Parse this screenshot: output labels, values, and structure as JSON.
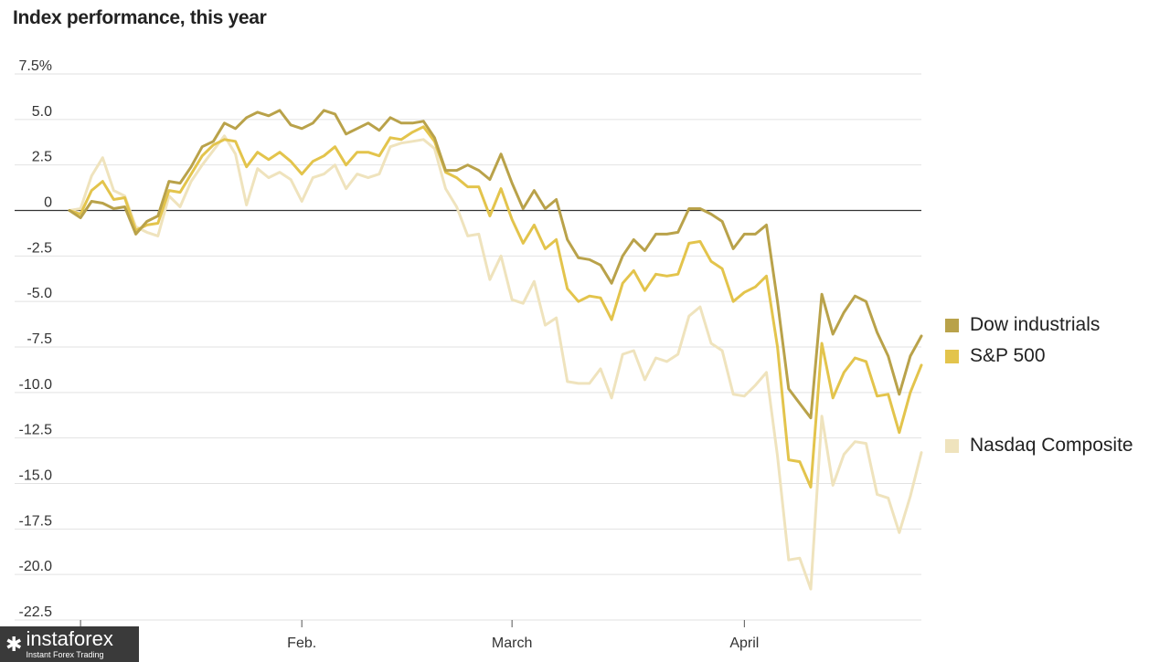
{
  "title": "Index performance, this year",
  "chart_data": {
    "type": "line",
    "title": "Index performance, this year",
    "xlabel": "",
    "ylabel": "",
    "ylim": [
      -22.5,
      7.5
    ],
    "y_ticks": [
      "7.5%",
      "5.0",
      "2.5",
      "0",
      "-2.5",
      "-5.0",
      "-7.5",
      "-10.0",
      "-12.5",
      "-15.0",
      "-17.5",
      "-20.0",
      "-22.5"
    ],
    "y_tick_values": [
      7.5,
      5,
      2.5,
      0,
      -2.5,
      -5,
      -7.5,
      -10,
      -12.5,
      -15,
      -17.5,
      -20,
      -22.5
    ],
    "x_ticks": [
      "",
      "Feb.",
      "March",
      "April"
    ],
    "x_tick_index": [
      1,
      21,
      40,
      61
    ],
    "grid": true,
    "legend_position": "right",
    "series": [
      {
        "name": "Dow industrials",
        "color": "#b9a24a",
        "values": [
          0,
          -0.4,
          0.5,
          0.4,
          0.1,
          0.2,
          -1.3,
          -0.6,
          -0.3,
          1.6,
          1.5,
          2.4,
          3.5,
          3.8,
          4.8,
          4.5,
          5.1,
          5.4,
          5.2,
          5.5,
          4.7,
          4.5,
          4.8,
          5.5,
          5.3,
          4.2,
          4.5,
          4.8,
          4.4,
          5.1,
          4.8,
          4.8,
          4.9,
          4.0,
          2.2,
          2.2,
          2.5,
          2.2,
          1.7,
          3.1,
          1.5,
          0.1,
          1.1,
          0.1,
          0.6,
          -1.6,
          -2.6,
          -2.7,
          -3.0,
          -4.0,
          -2.5,
          -1.6,
          -2.2,
          -1.3,
          -1.3,
          -1.2,
          0.1,
          0.1,
          -0.2,
          -0.6,
          -2.1,
          -1.3,
          -1.3,
          -0.8,
          -5.0,
          -9.8,
          -10.6,
          -11.4,
          -4.6,
          -6.8,
          -5.6,
          -4.7,
          -5.0,
          -6.7,
          -8.0,
          -10.1,
          -8.0,
          -6.9
        ]
      },
      {
        "name": "S&P 500",
        "color": "#e3c44c",
        "values": [
          0,
          -0.2,
          1.1,
          1.6,
          0.6,
          0.7,
          -1.1,
          -0.8,
          -0.7,
          1.1,
          1.0,
          2.0,
          3.0,
          3.6,
          3.9,
          3.8,
          2.4,
          3.2,
          2.8,
          3.2,
          2.7,
          2.0,
          2.7,
          3.0,
          3.5,
          2.5,
          3.2,
          3.2,
          3.0,
          4.0,
          3.9,
          4.3,
          4.6,
          3.8,
          2.1,
          1.8,
          1.3,
          1.3,
          -0.3,
          1.2,
          -0.5,
          -1.8,
          -0.8,
          -2.1,
          -1.6,
          -4.3,
          -5.0,
          -4.7,
          -4.8,
          -6.0,
          -4.0,
          -3.3,
          -4.4,
          -3.5,
          -3.6,
          -3.5,
          -1.8,
          -1.7,
          -2.8,
          -3.2,
          -5.0,
          -4.5,
          -4.2,
          -3.6,
          -7.5,
          -13.7,
          -13.8,
          -15.2,
          -7.3,
          -10.3,
          -8.9,
          -8.1,
          -8.3,
          -10.2,
          -10.1,
          -12.2,
          -10.0,
          -8.5
        ]
      },
      {
        "name": "Nasdaq Composite",
        "color": "#efe3bd",
        "values": [
          0,
          0.1,
          1.9,
          2.9,
          1.1,
          0.8,
          -0.9,
          -1.2,
          -1.4,
          0.8,
          0.2,
          1.6,
          2.5,
          3.3,
          4.1,
          3.1,
          0.3,
          2.3,
          1.8,
          2.1,
          1.7,
          0.5,
          1.8,
          2.0,
          2.5,
          1.2,
          2.0,
          1.8,
          2.0,
          3.5,
          3.7,
          3.8,
          3.9,
          3.4,
          1.2,
          0.2,
          -1.4,
          -1.3,
          -3.8,
          -2.5,
          -4.9,
          -5.1,
          -3.9,
          -6.3,
          -5.9,
          -9.4,
          -9.5,
          -9.5,
          -8.7,
          -10.3,
          -7.9,
          -7.7,
          -9.3,
          -8.1,
          -8.3,
          -7.9,
          -5.8,
          -5.3,
          -7.3,
          -7.7,
          -10.1,
          -10.2,
          -9.6,
          -8.9,
          -13.5,
          -19.2,
          -19.1,
          -20.8,
          -11.3,
          -15.1,
          -13.4,
          -12.7,
          -12.8,
          -15.6,
          -15.8,
          -17.7,
          -15.7,
          -13.3
        ]
      }
    ]
  },
  "watermark": {
    "brand": "instaforex",
    "tagline": "Instant Forex Trading"
  }
}
